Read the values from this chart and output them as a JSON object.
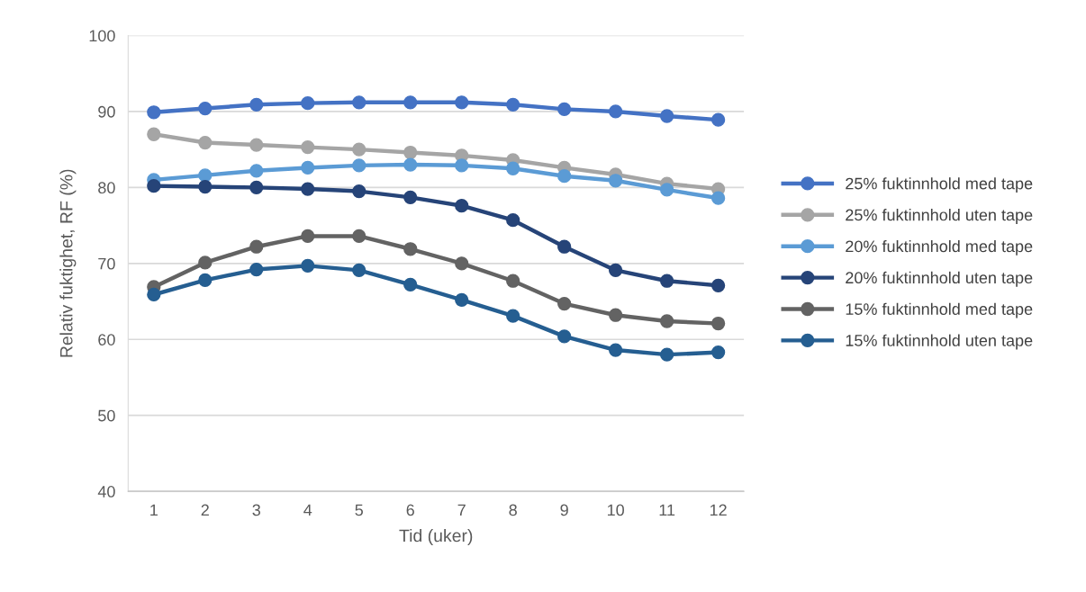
{
  "chart_data": {
    "type": "line",
    "xlabel": "Tid (uker)",
    "ylabel": "Relativ fuktighet, RF (%)",
    "categories": [
      "1",
      "2",
      "3",
      "4",
      "5",
      "6",
      "7",
      "8",
      "9",
      "10",
      "11",
      "12"
    ],
    "ylim": [
      40,
      100
    ],
    "yticks": [
      40,
      50,
      60,
      70,
      80,
      90,
      100
    ],
    "grid": "y",
    "legend": "right",
    "marker": "circle",
    "line_style": "solid",
    "series": [
      {
        "name": "25% fuktinnhold med tape",
        "color": "#4472c4",
        "values": [
          89.9,
          90.4,
          90.9,
          91.1,
          91.2,
          91.2,
          91.2,
          90.9,
          90.3,
          90.0,
          89.4,
          88.9
        ]
      },
      {
        "name": "25% fuktinnhold uten tape",
        "color": "#a5a5a5",
        "values": [
          87.0,
          85.9,
          85.6,
          85.3,
          85.0,
          84.6,
          84.2,
          83.6,
          82.6,
          81.7,
          80.5,
          79.8
        ]
      },
      {
        "name": "20% fuktinnhold med tape",
        "color": "#5b9bd5",
        "values": [
          81.0,
          81.6,
          82.2,
          82.6,
          82.9,
          83.0,
          82.9,
          82.5,
          81.5,
          80.9,
          79.7,
          78.6
        ]
      },
      {
        "name": "20% fuktinnhold uten tape",
        "color": "#264478",
        "values": [
          80.2,
          80.1,
          80.0,
          79.8,
          79.5,
          78.7,
          77.6,
          75.7,
          72.2,
          69.1,
          67.7,
          67.1
        ]
      },
      {
        "name": "15% fuktinnhold med tape",
        "color": "#636363",
        "values": [
          66.9,
          70.1,
          72.2,
          73.6,
          73.6,
          71.9,
          70.0,
          67.7,
          64.7,
          63.2,
          62.4,
          62.1
        ]
      },
      {
        "name": "15% fuktinnhold uten tape",
        "color": "#255e91",
        "values": [
          65.9,
          67.8,
          69.2,
          69.7,
          69.1,
          67.2,
          65.2,
          63.1,
          60.4,
          58.6,
          58.0,
          58.3
        ]
      }
    ]
  }
}
